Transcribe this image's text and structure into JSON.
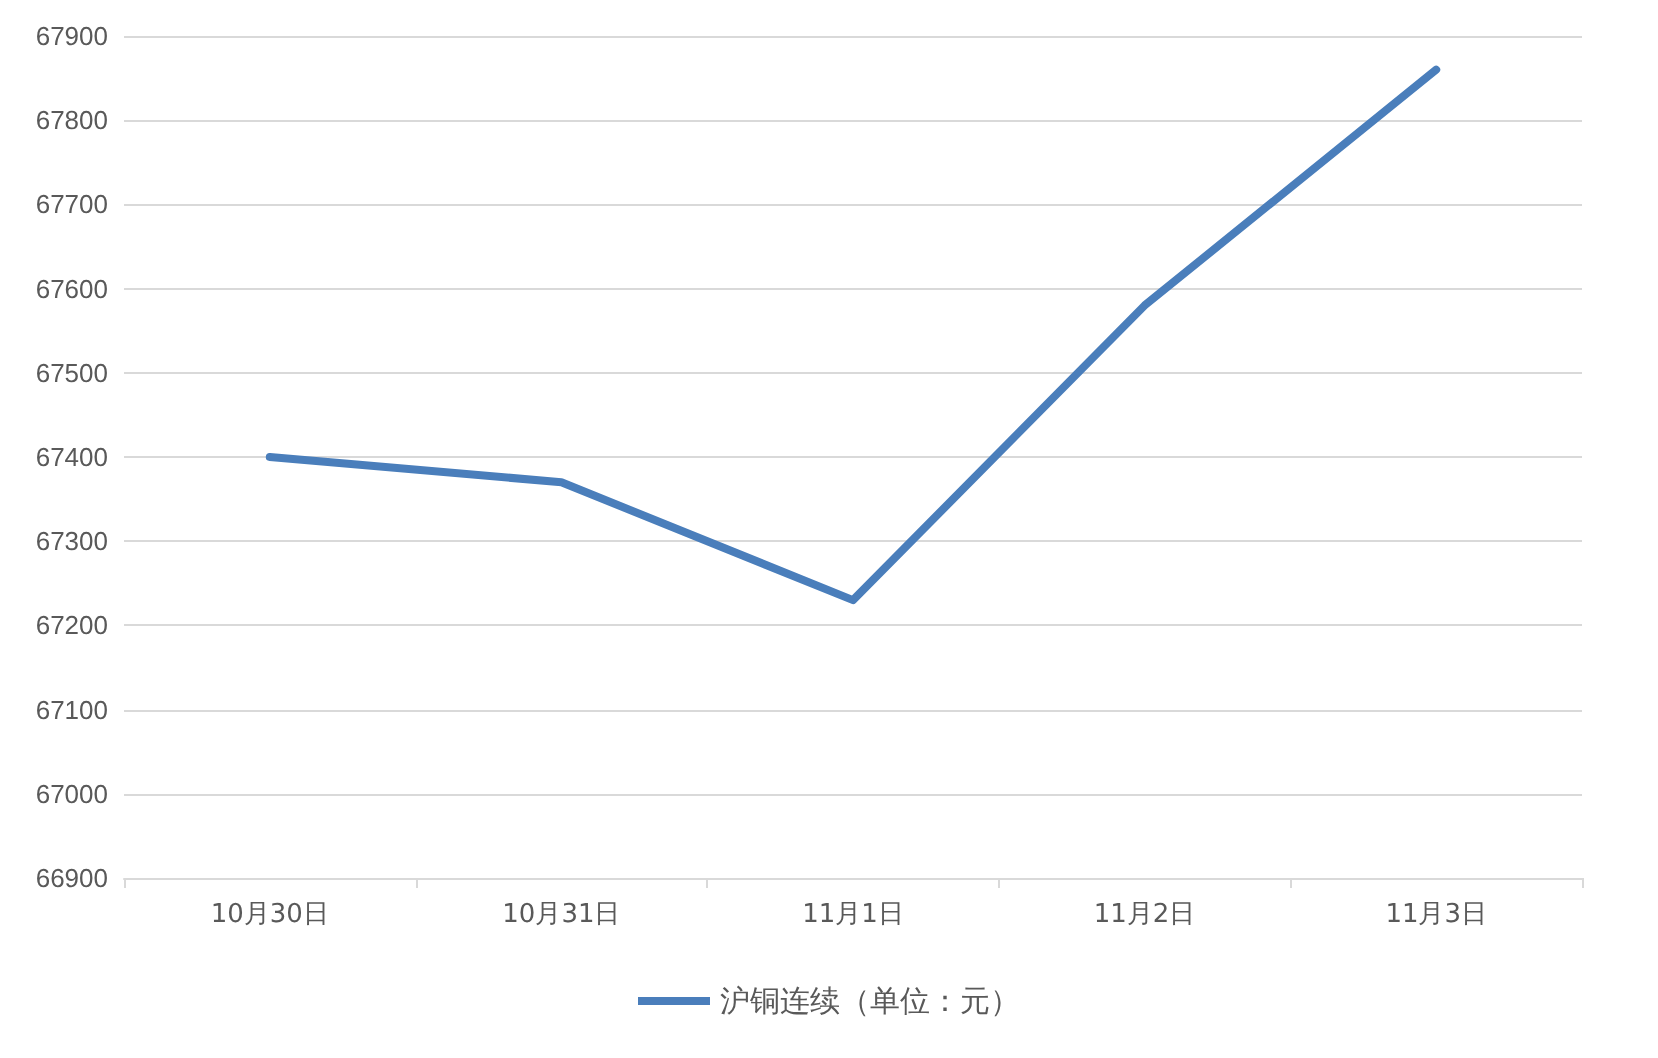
{
  "chart_data": {
    "type": "line",
    "categories": [
      "10月30日",
      "10月31日",
      "11月1日",
      "11月2日",
      "11月3日"
    ],
    "series": [
      {
        "name": "沪铜连续（单位：元）",
        "color": "#4a7ebb",
        "values": [
          67400,
          67370,
          67230,
          67580,
          67860
        ]
      }
    ],
    "ylim": [
      66900,
      67900
    ],
    "yticks": [
      66900,
      67000,
      67100,
      67200,
      67300,
      67400,
      67500,
      67600,
      67700,
      67800,
      67900
    ],
    "grid": "y",
    "legend": "bottom",
    "marker": "none",
    "line_style": "solid"
  }
}
